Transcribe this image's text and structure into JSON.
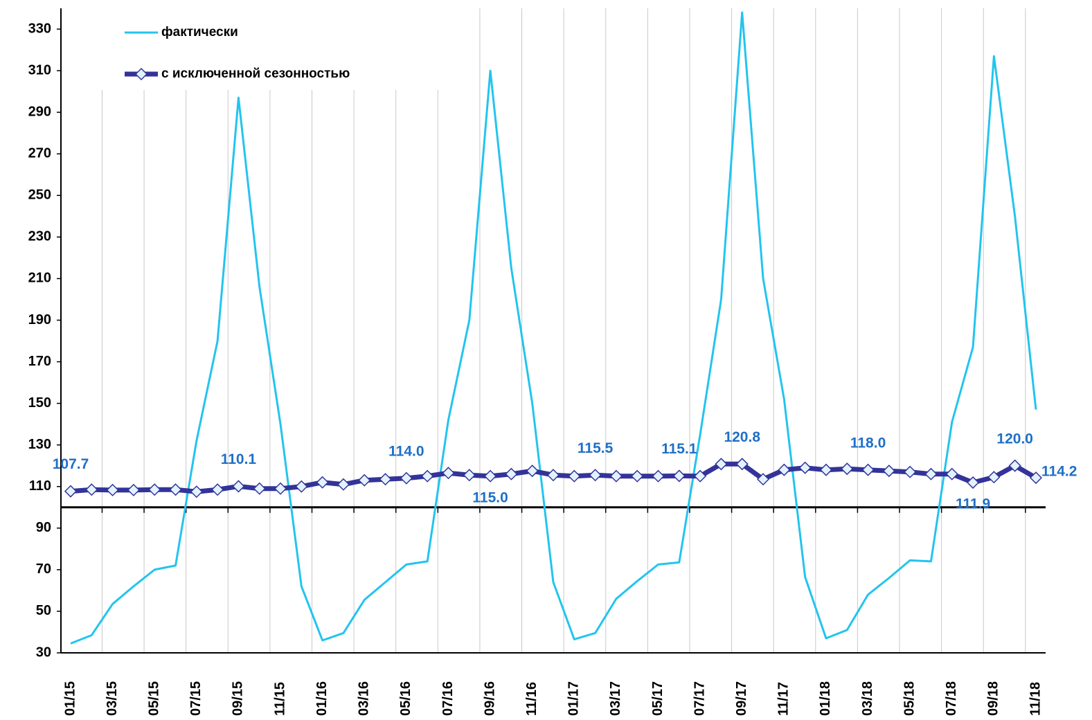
{
  "chart_data": {
    "type": "line",
    "categories": [
      "01/15",
      null,
      "03/15",
      null,
      "05/15",
      null,
      "07/15",
      null,
      "09/15",
      null,
      "11/15",
      null,
      "01/16",
      null,
      "03/16",
      null,
      "05/16",
      null,
      "07/16",
      null,
      "09/16",
      null,
      "11/16",
      null,
      "01/17",
      null,
      "03/17",
      null,
      "05/17",
      null,
      "07/17",
      null,
      "09/17",
      null,
      "11/17",
      null,
      "01/18",
      null,
      "03/18",
      null,
      "05/18",
      null,
      "07/18",
      null,
      "09/18",
      null,
      "11/18"
    ],
    "series": [
      {
        "name": "фактически",
        "color": "#22c4ee",
        "values": [
          34.5,
          38.5,
          53.5,
          62,
          70,
          72,
          132,
          180,
          297,
          206,
          140,
          62,
          36,
          39.5,
          55.5,
          64,
          72.5,
          74,
          142,
          190,
          310,
          215,
          150,
          64,
          36.5,
          39.5,
          56,
          64.5,
          72.5,
          73.5,
          135,
          200,
          338,
          210,
          152,
          66.5,
          37,
          41,
          58,
          66,
          74.5,
          74,
          141,
          177,
          317,
          240,
          147
        ]
      },
      {
        "name": "с исключенной  сезонностью",
        "color": "#333399",
        "marker_fill": "#e2f2ff",
        "values": [
          107.7,
          108.5,
          108.3,
          108.3,
          108.5,
          108.5,
          107.5,
          108.5,
          110.1,
          109,
          109,
          110,
          112,
          111,
          113,
          113.5,
          114.0,
          115,
          116.5,
          115.5,
          115.0,
          116,
          117.5,
          115.5,
          115,
          115.5,
          115,
          115,
          115,
          115.1,
          115,
          120.8,
          120.8,
          113.5,
          118,
          119,
          118,
          118.5,
          118.0,
          117.5,
          117,
          116,
          116,
          111.9,
          114.5,
          120.0,
          114.2
        ],
        "value_labels": [
          "107.7",
          null,
          null,
          null,
          null,
          null,
          null,
          null,
          "110.1",
          null,
          null,
          null,
          null,
          null,
          null,
          null,
          "114.0",
          null,
          null,
          null,
          "115.0",
          null,
          null,
          null,
          null,
          "115.5",
          null,
          null,
          null,
          "115.1",
          null,
          null,
          "120.8",
          null,
          null,
          null,
          null,
          null,
          "118.0",
          null,
          null,
          null,
          null,
          "111.9",
          null,
          "120.0",
          "114.2"
        ],
        "value_label_color": "#1f6fc8"
      }
    ],
    "ylim": [
      30,
      340
    ],
    "yticks": [
      30,
      50,
      70,
      90,
      110,
      130,
      150,
      170,
      190,
      210,
      230,
      250,
      270,
      290,
      310,
      330
    ],
    "hline": 100,
    "grid": "x",
    "legend": "upper left"
  }
}
